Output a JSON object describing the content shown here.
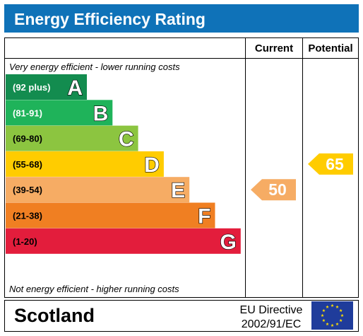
{
  "header": {
    "title": "Energy Efficiency Rating"
  },
  "columns": {
    "current": "Current",
    "potential": "Potential"
  },
  "notes": {
    "top": "Very energy efficient - lower running costs",
    "bottom": "Not energy efficient - higher running costs"
  },
  "footer": {
    "country": "Scotland",
    "directive_line1": "EU Directive",
    "directive_line2": "2002/91/EC"
  },
  "chart_data": {
    "type": "bar",
    "title": "Energy Efficiency Rating",
    "bands": [
      {
        "letter": "A",
        "range": "(92 plus)",
        "min": 92,
        "max": 100,
        "color": "#138c4f",
        "range_text_color": "#ffffff"
      },
      {
        "letter": "B",
        "range": "(81-91)",
        "min": 81,
        "max": 91,
        "color": "#1fb35a",
        "range_text_color": "#ffffff"
      },
      {
        "letter": "C",
        "range": "(69-80)",
        "min": 69,
        "max": 80,
        "color": "#8cc540",
        "range_text_color": "#000000"
      },
      {
        "letter": "D",
        "range": "(55-68)",
        "min": 55,
        "max": 68,
        "color": "#ffcc00",
        "range_text_color": "#000000"
      },
      {
        "letter": "E",
        "range": "(39-54)",
        "min": 39,
        "max": 54,
        "color": "#f6ac64",
        "range_text_color": "#000000"
      },
      {
        "letter": "F",
        "range": "(21-38)",
        "min": 21,
        "max": 38,
        "color": "#f07f22",
        "range_text_color": "#000000"
      },
      {
        "letter": "G",
        "range": "(1-20)",
        "min": 1,
        "max": 20,
        "color": "#e31d3c",
        "range_text_color": "#000000"
      }
    ],
    "current": {
      "value": 50,
      "band": "E",
      "color": "#f6ac64"
    },
    "potential": {
      "value": 65,
      "band": "D",
      "color": "#ffcc00"
    }
  }
}
